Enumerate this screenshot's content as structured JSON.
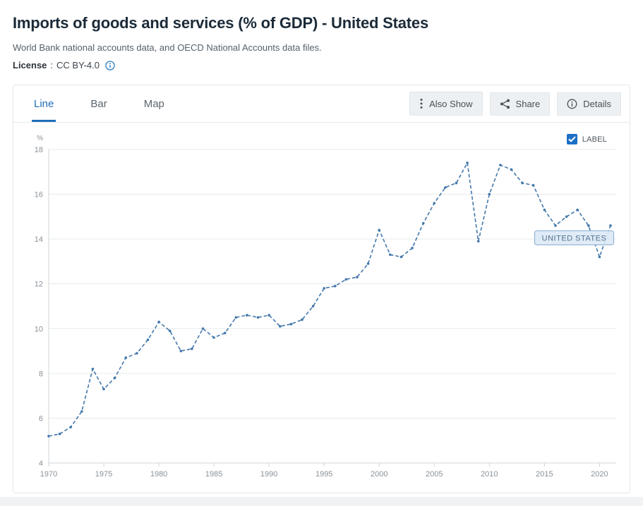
{
  "header": {
    "title": "Imports of goods and services (% of GDP) - United States",
    "subtitle": "World Bank national accounts data, and OECD National Accounts data files.",
    "license_label": "License",
    "license_sep": ":",
    "license_value": "CC BY-4.0"
  },
  "tabs": [
    {
      "label": "Line",
      "active": true
    },
    {
      "label": "Bar",
      "active": false
    },
    {
      "label": "Map",
      "active": false
    }
  ],
  "toolbar": {
    "also_show": "Also Show",
    "share": "Share",
    "details": "Details"
  },
  "chart_controls": {
    "label_toggle": "LABEL",
    "checked": true
  },
  "colors": {
    "accent_blue": "#1d6fb8",
    "checkbox_blue": "#1c6fc4",
    "line_blue": "#4478ab",
    "annotation_fill": "#dce9f6",
    "annotation_border": "#88aed2"
  },
  "chart_data": {
    "type": "line",
    "title": "Imports of goods and services (% of GDP) - United States",
    "series_name": "UNITED STATES",
    "ylabel": "%",
    "xlabel": "",
    "ylim": [
      4,
      18
    ],
    "yticks": [
      4,
      6,
      8,
      10,
      12,
      14,
      16,
      18
    ],
    "xticks": [
      1970,
      1975,
      1980,
      1985,
      1990,
      1995,
      2000,
      2005,
      2010,
      2015,
      2020
    ],
    "grid": true,
    "line_style": "dashed",
    "line_color": "#4478ab",
    "legend_position": "top-right",
    "x": [
      1970,
      1971,
      1972,
      1973,
      1974,
      1975,
      1976,
      1977,
      1978,
      1979,
      1980,
      1981,
      1982,
      1983,
      1984,
      1985,
      1986,
      1987,
      1988,
      1989,
      1990,
      1991,
      1992,
      1993,
      1994,
      1995,
      1996,
      1997,
      1998,
      1999,
      2000,
      2001,
      2002,
      2003,
      2004,
      2005,
      2006,
      2007,
      2008,
      2009,
      2010,
      2011,
      2012,
      2013,
      2014,
      2015,
      2016,
      2017,
      2018,
      2019,
      2020,
      2021
    ],
    "values": [
      5.2,
      5.3,
      5.6,
      6.3,
      8.2,
      7.3,
      7.8,
      8.7,
      8.9,
      9.5,
      10.3,
      9.9,
      9.0,
      9.1,
      10.0,
      9.6,
      9.8,
      10.5,
      10.6,
      10.5,
      10.6,
      10.1,
      10.2,
      10.4,
      11.0,
      11.8,
      11.9,
      12.2,
      12.3,
      12.9,
      14.4,
      13.3,
      13.2,
      13.6,
      14.7,
      15.6,
      16.3,
      16.5,
      17.4,
      13.9,
      16.0,
      17.3,
      17.1,
      16.5,
      16.4,
      15.3,
      14.6,
      15.0,
      15.3,
      14.6,
      13.2,
      14.6
    ],
    "annotation": {
      "text": "UNITED STATES",
      "at_x": 2017.7,
      "at_y": 14.05
    }
  }
}
